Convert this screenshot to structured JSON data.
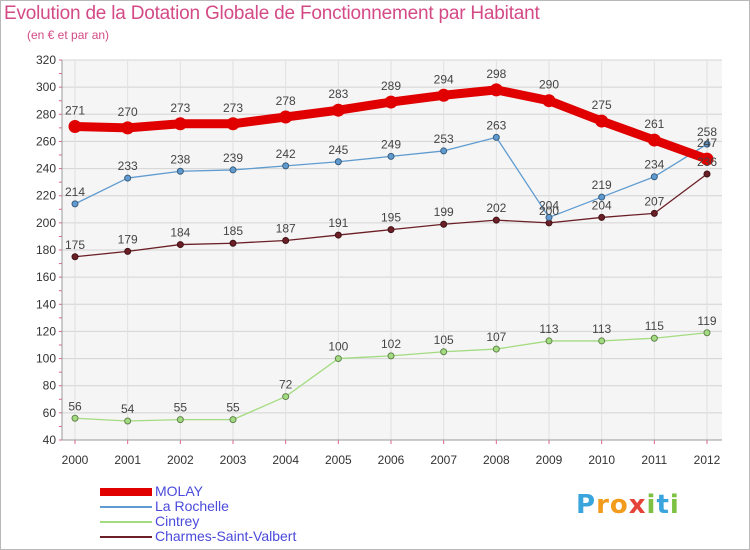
{
  "chart_data": {
    "type": "line",
    "title": "Evolution de la Dotation Globale de Fonctionnement par Habitant",
    "subtitle": "(en € et par an)",
    "xlabel": "",
    "ylabel": "",
    "categories": [
      "2000",
      "2001",
      "2002",
      "2003",
      "2004",
      "2005",
      "2006",
      "2007",
      "2008",
      "2009",
      "2010",
      "2011",
      "2012"
    ],
    "ylim": [
      40,
      320
    ],
    "yticks": [
      40,
      60,
      80,
      100,
      120,
      140,
      160,
      180,
      200,
      220,
      240,
      260,
      280,
      300,
      320
    ],
    "grid": true,
    "legend_position": "bottom-left",
    "series": [
      {
        "name": "Charmes-Saint-Valbert",
        "color": "#6b1f26",
        "values": [
          175,
          179,
          184,
          185,
          187,
          191,
          195,
          199,
          202,
          200,
          204,
          207,
          236
        ]
      },
      {
        "name": "Cintrey",
        "color": "#a3db80",
        "values": [
          56,
          54,
          55,
          55,
          72,
          100,
          102,
          105,
          107,
          113,
          113,
          115,
          119
        ]
      },
      {
        "name": "La Rochelle",
        "color": "#5f9bd0",
        "values": [
          214,
          233,
          238,
          239,
          242,
          245,
          249,
          253,
          263,
          204,
          219,
          234,
          258
        ]
      },
      {
        "name": "MOLAY",
        "color": "#e00000",
        "values": [
          271,
          270,
          273,
          273,
          278,
          283,
          289,
          294,
          298,
          290,
          275,
          261,
          247
        ]
      }
    ],
    "legend_order": [
      "MOLAY",
      "La Rochelle",
      "Cintrey",
      "Charmes-Saint-Valbert"
    ]
  },
  "logo": {
    "letters": [
      "P",
      "r",
      "o",
      "x",
      "i",
      "t",
      "i"
    ],
    "colors": [
      "#3aa5dc",
      "#f39b1c",
      "#f39b1c",
      "#e5433a",
      "#7cc142",
      "#3aa5dc",
      "#7cc142"
    ]
  }
}
